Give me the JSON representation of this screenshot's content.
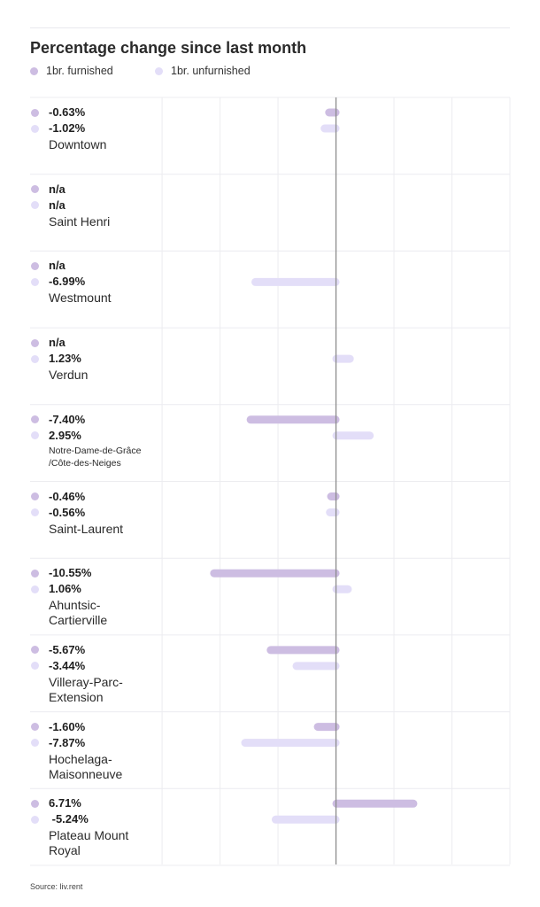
{
  "colors": {
    "furnished": "#cdbde2",
    "unfurnished": "#e3def8",
    "axis": "#8a8a8a",
    "grid": "#ececf0"
  },
  "source": "Source: liv.rent",
  "chart_data": {
    "type": "bar",
    "orientation": "horizontal",
    "title": "Percentage change since last month",
    "xlim": [
      -16,
      15
    ],
    "grid": true,
    "legend_position": "top-left",
    "series": [
      {
        "name": "1br. furnished",
        "color": "#cdbde2"
      },
      {
        "name": "1br. unfurnished",
        "color": "#e3def8"
      }
    ],
    "categories": [
      {
        "name": "Downtown",
        "furnished": -0.63,
        "furnished_label": "-0.63%",
        "unfurnished": -1.02,
        "unfurnished_label": "-1.02%"
      },
      {
        "name": "Saint Henri",
        "furnished": null,
        "furnished_label": "n/a",
        "unfurnished": null,
        "unfurnished_label": "n/a"
      },
      {
        "name": "Westmount",
        "furnished": null,
        "furnished_label": "n/a",
        "unfurnished": -6.99,
        "unfurnished_label": "-6.99%"
      },
      {
        "name": "Verdun",
        "furnished": null,
        "furnished_label": "n/a",
        "unfurnished": 1.23,
        "unfurnished_label": "1.23%"
      },
      {
        "name": "Notre-Dame-de-Grâce\n/Côte-des-Neiges",
        "furnished": -7.4,
        "furnished_label": "-7.40%",
        "unfurnished": 2.95,
        "unfurnished_label": "2.95%"
      },
      {
        "name": "Saint-Laurent",
        "furnished": -0.46,
        "furnished_label": "-0.46%",
        "unfurnished": -0.56,
        "unfurnished_label": "-0.56%"
      },
      {
        "name": "Ahuntsic-\nCartierville",
        "furnished": -10.55,
        "furnished_label": "-10.55%",
        "unfurnished": 1.06,
        "unfurnished_label": "1.06%"
      },
      {
        "name": "Villeray-Parc-\nExtension",
        "furnished": -5.67,
        "furnished_label": "-5.67%",
        "unfurnished": -3.44,
        "unfurnished_label": "-3.44%"
      },
      {
        "name": "Hochelaga-\nMaisonneuve",
        "furnished": -1.6,
        "furnished_label": "-1.60%",
        "unfurnished": -7.87,
        "unfurnished_label": "-7.87%"
      },
      {
        "name": "Plateau Mount\nRoyal",
        "furnished": 6.71,
        "furnished_label": "6.71%",
        "unfurnished": -5.24,
        "unfurnished_label": " -5.24%"
      }
    ]
  }
}
